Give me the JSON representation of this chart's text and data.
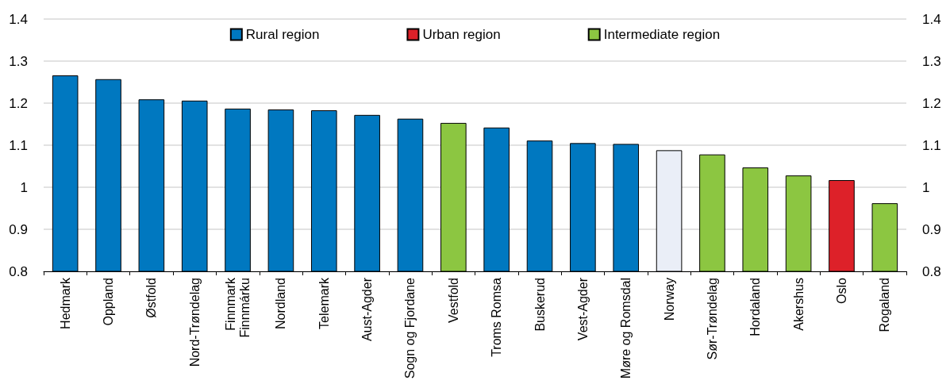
{
  "chart_data": {
    "type": "bar",
    "categories": [
      "Hedmark",
      "Oppland",
      "Østfold",
      "Nord-Trøndelag",
      "Finnmark\nFinnmárku",
      "Nordland",
      "Telemark",
      "Aust-Agder",
      "Sogn og Fjordane",
      "Vestfold",
      "Troms Romsa",
      "Buskerud",
      "Vest-Agder",
      "Møre og Romsdal",
      "Norway",
      "Sør-Trøndelag",
      "Hordaland",
      "Akershus",
      "Oslo",
      "Rogaland"
    ],
    "series": [
      {
        "name": "Rural region",
        "color": "#0078c0",
        "values": [
          1.266,
          1.257,
          1.209,
          1.206,
          1.187,
          1.185,
          1.183,
          1.172,
          1.163,
          null,
          1.142,
          1.111,
          1.105,
          1.103,
          null,
          null,
          null,
          null,
          null,
          null
        ]
      },
      {
        "name": "Urban region",
        "color": "#dd2129",
        "values": [
          null,
          null,
          null,
          null,
          null,
          null,
          null,
          null,
          null,
          null,
          null,
          null,
          null,
          null,
          null,
          null,
          null,
          null,
          1.017,
          null
        ]
      },
      {
        "name": "Intermediate region",
        "color": "#8cc641",
        "values": [
          null,
          null,
          null,
          null,
          null,
          null,
          null,
          null,
          null,
          1.153,
          null,
          null,
          null,
          null,
          null,
          1.078,
          1.047,
          1.028,
          null,
          0.962
        ]
      },
      {
        "color": "#eaeef7",
        "values": [
          null,
          null,
          null,
          null,
          null,
          null,
          null,
          null,
          null,
          null,
          null,
          null,
          null,
          null,
          1.088,
          null,
          null,
          null,
          null,
          null
        ]
      }
    ],
    "ylim": [
      0.8,
      1.4
    ],
    "yticks": [
      0.8,
      0.9,
      1,
      1.1,
      1.2,
      1.3,
      1.4
    ],
    "y2lim": [
      0.8,
      1.4
    ],
    "y2ticks": [
      0.8,
      0.9,
      1,
      1.1,
      1.2,
      1.3,
      1.4
    ],
    "grid": "y",
    "legend": "top"
  }
}
